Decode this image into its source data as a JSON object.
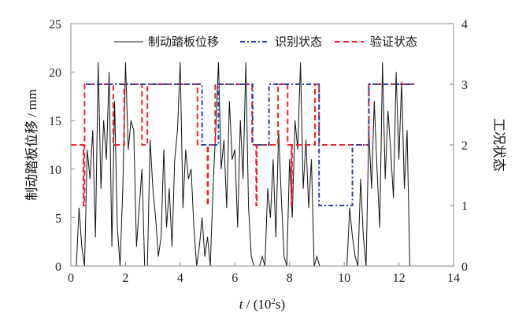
{
  "chart_data": {
    "type": "line",
    "xlabel_italic": "t",
    "xlabel_rest": " / (10",
    "xlabel_sup": "2",
    "xlabel_end": "s)",
    "ylabel_left": "制动踏板位移 / mm",
    "ylabel_right": "工况状态",
    "xlim": [
      0,
      14
    ],
    "ylim_left": [
      0,
      25
    ],
    "ylim_right": [
      0,
      4
    ],
    "x_ticks": [
      "0",
      "2",
      "4",
      "6",
      "8",
      "10",
      "12",
      "14"
    ],
    "y_left_ticks": [
      "0",
      "5",
      "10",
      "15",
      "20",
      "25"
    ],
    "y_right_ticks": [
      "0",
      "1",
      "2",
      "3",
      "4"
    ],
    "legend": [
      "制动踏板位移",
      "识别状态",
      "验证状态"
    ],
    "legend_placement": "top",
    "colors": {
      "displacement": "#111111",
      "identified": "#2a3f9e",
      "verified": "#e8242a"
    },
    "displacement": {
      "t_start": 0,
      "t_step": 0.1,
      "values": [
        0,
        0,
        0,
        6,
        2,
        0,
        12,
        9,
        14,
        3,
        21,
        8,
        15,
        11,
        20,
        2,
        17,
        4,
        0,
        8,
        21,
        12,
        15,
        14,
        2,
        6,
        10,
        0,
        0,
        13,
        8,
        5,
        1,
        3,
        12,
        4,
        8,
        2,
        11,
        14,
        21,
        6,
        12,
        9,
        10,
        4,
        0,
        2,
        5,
        1,
        3,
        0,
        8,
        14,
        21,
        10,
        13,
        6,
        17,
        11,
        12,
        4,
        15,
        9,
        21,
        6,
        1,
        0,
        0,
        0,
        1,
        0,
        8,
        5,
        11,
        3,
        14,
        7,
        1,
        0,
        11,
        5,
        15,
        12,
        21,
        8,
        13,
        6,
        11,
        0,
        1,
        0,
        0,
        0,
        0,
        0,
        0,
        0,
        0,
        0,
        0,
        0,
        6,
        3,
        1,
        0,
        9,
        3,
        0,
        14,
        8,
        17,
        10,
        4,
        21,
        9,
        16,
        12,
        7,
        20,
        11,
        19,
        8,
        14,
        0
      ]
    },
    "identified_state": {
      "t": [
        0.55,
        4.8,
        5.4,
        6.65,
        7.25,
        9.08,
        10.3,
        10.9,
        12.55
      ],
      "values": [
        3,
        2,
        3,
        2,
        3,
        1,
        2,
        3,
        3
      ]
    },
    "verified_state": {
      "t": [
        0,
        0.46,
        0.5,
        1.55,
        1.95,
        2.6,
        2.8,
        4.63,
        5.0,
        5.02,
        5.28,
        6.63,
        6.78,
        6.8,
        7.58,
        7.93,
        8.07,
        8.09,
        8.93,
        9.08,
        10.9,
        12.55
      ],
      "values": [
        2,
        1,
        3,
        2,
        3,
        2,
        3,
        2,
        1,
        2,
        3,
        2,
        1,
        2,
        3,
        2,
        1,
        2,
        3,
        2,
        3,
        3
      ]
    }
  }
}
